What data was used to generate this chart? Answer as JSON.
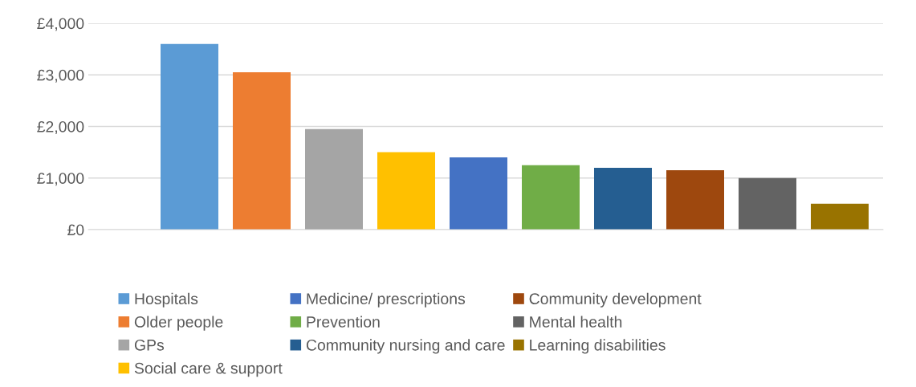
{
  "chart_data": {
    "type": "bar",
    "categories": [
      null
    ],
    "series": [
      {
        "name": "Hospitals",
        "color": "#5b9bd5",
        "values": [
          3600
        ]
      },
      {
        "name": "Older people",
        "color": "#ed7d31",
        "values": [
          3050
        ]
      },
      {
        "name": "GPs",
        "color": "#a5a5a5",
        "values": [
          1950
        ]
      },
      {
        "name": "Social care & support",
        "color": "#ffc000",
        "values": [
          1500
        ]
      },
      {
        "name": "Medicine/ prescriptions",
        "color": "#4472c4",
        "values": [
          1400
        ]
      },
      {
        "name": "Prevention",
        "color": "#70ad47",
        "values": [
          1250
        ]
      },
      {
        "name": "Community nursing and care",
        "color": "#255e91",
        "values": [
          1200
        ]
      },
      {
        "name": "Community development",
        "color": "#9e480e",
        "values": [
          1150
        ]
      },
      {
        "name": "Mental health",
        "color": "#636363",
        "values": [
          1000
        ]
      },
      {
        "name": "Learning disabilities",
        "color": "#997300",
        "values": [
          500
        ]
      }
    ],
    "ylim": [
      0,
      4000
    ],
    "yticks": [
      {
        "value": 0,
        "label": "£0"
      },
      {
        "value": 1000,
        "label": "£1,000"
      },
      {
        "value": 2000,
        "label": "£2,000"
      },
      {
        "value": 3000,
        "label": "£3,000"
      },
      {
        "value": 4000,
        "label": "£4,000"
      }
    ],
    "grid": "y",
    "legend": "bottom"
  }
}
